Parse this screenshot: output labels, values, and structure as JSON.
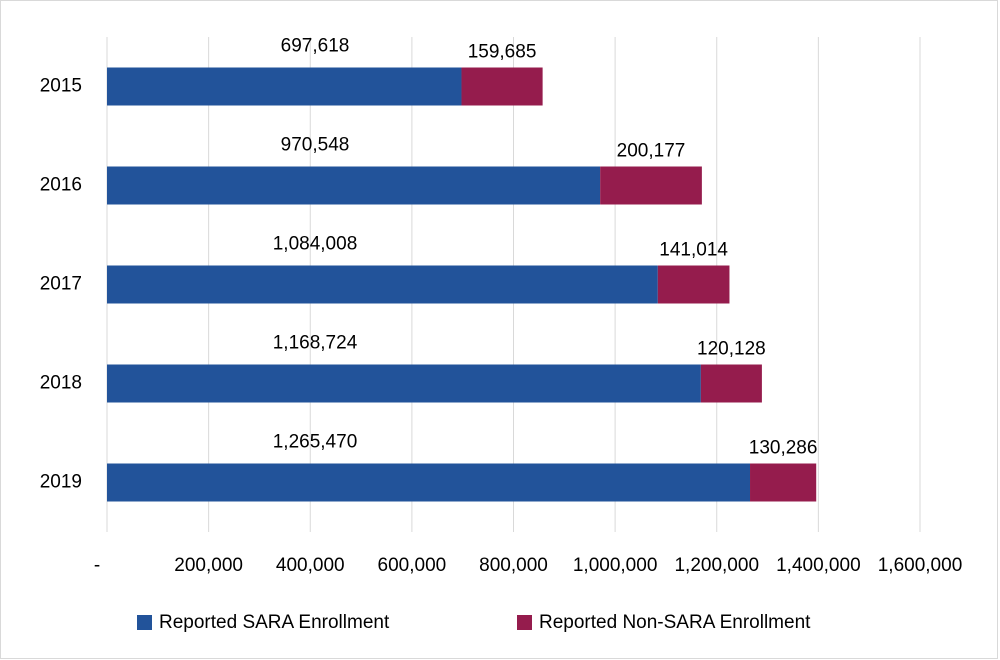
{
  "chart_data": {
    "type": "stacked-barh",
    "categories": [
      "2015",
      "2016",
      "2017",
      "2018",
      "2019"
    ],
    "series": [
      {
        "name": "Reported SARA Enrollment",
        "color": "#22539a",
        "values": [
          697618,
          970548,
          1084008,
          1168724,
          1265470
        ],
        "value_labels": [
          "697,618",
          "970,548",
          "1,084,008",
          "1,168,724",
          "1,265,470"
        ]
      },
      {
        "name": "Reported Non-SARA Enrollment",
        "color": "#951c4d",
        "values": [
          159685,
          200177,
          141014,
          120128,
          130286
        ],
        "value_labels": [
          "159,685",
          "200,177",
          "141,014",
          "120,128",
          "130,286"
        ]
      }
    ],
    "xlim": [
      0,
      1600000
    ],
    "xticks": [
      {
        "value": 0,
        "label": "-"
      },
      {
        "value": 200000,
        "label": "200,000"
      },
      {
        "value": 400000,
        "label": "400,000"
      },
      {
        "value": 600000,
        "label": "600,000"
      },
      {
        "value": 800000,
        "label": "800,000"
      },
      {
        "value": 1000000,
        "label": "1,000,000"
      },
      {
        "value": 1200000,
        "label": "1,200,000"
      },
      {
        "value": 1400000,
        "label": "1,400,000"
      },
      {
        "value": 1600000,
        "label": "1,600,000"
      }
    ],
    "grid": true,
    "legend": "bottom"
  }
}
